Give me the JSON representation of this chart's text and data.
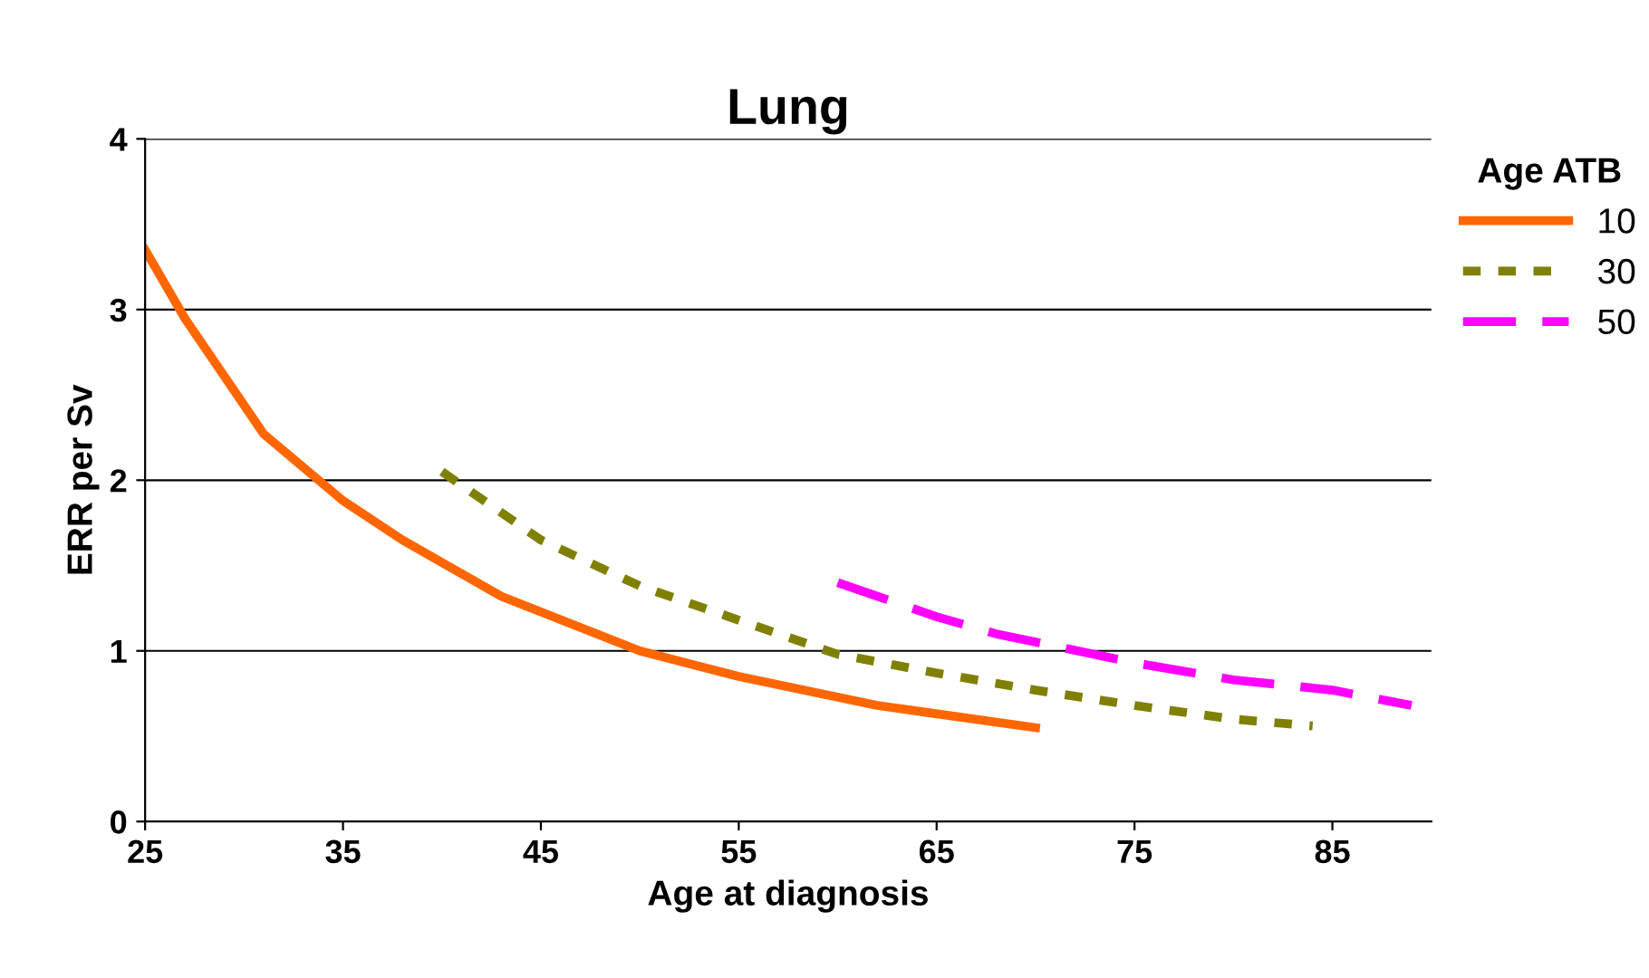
{
  "chart_data": {
    "type": "line",
    "title": "Lung",
    "xlabel": "Age at diagnosis",
    "ylabel": "ERR per Sv",
    "legend_title": "Age ATB",
    "legend": "right",
    "grid": "y",
    "xlim": [
      25,
      90
    ],
    "xticks": [
      25,
      35,
      45,
      55,
      65,
      75,
      85
    ],
    "ylim": [
      0,
      4
    ],
    "yticks": [
      0,
      1,
      2,
      3,
      4
    ],
    "series": [
      {
        "name": "10",
        "color": "#ff6600",
        "line_style": "solid",
        "x": [
          25,
          27,
          31,
          35,
          38,
          43,
          50,
          55,
          62,
          70
        ],
        "values": [
          3.35,
          2.95,
          2.27,
          1.88,
          1.65,
          1.32,
          1.0,
          0.85,
          0.68,
          0.55
        ]
      },
      {
        "name": "30",
        "color": "#808000",
        "line_style": "dotted",
        "x": [
          40,
          45,
          50,
          55,
          60,
          65,
          70,
          75,
          80,
          84
        ],
        "values": [
          2.05,
          1.65,
          1.38,
          1.18,
          0.98,
          0.87,
          0.77,
          0.68,
          0.6,
          0.56
        ]
      },
      {
        "name": "50",
        "color": "#ff00ff",
        "line_style": "dashed",
        "x": [
          60,
          65,
          68,
          75,
          80,
          85,
          89
        ],
        "values": [
          1.4,
          1.2,
          1.1,
          0.93,
          0.83,
          0.77,
          0.68
        ]
      }
    ]
  }
}
